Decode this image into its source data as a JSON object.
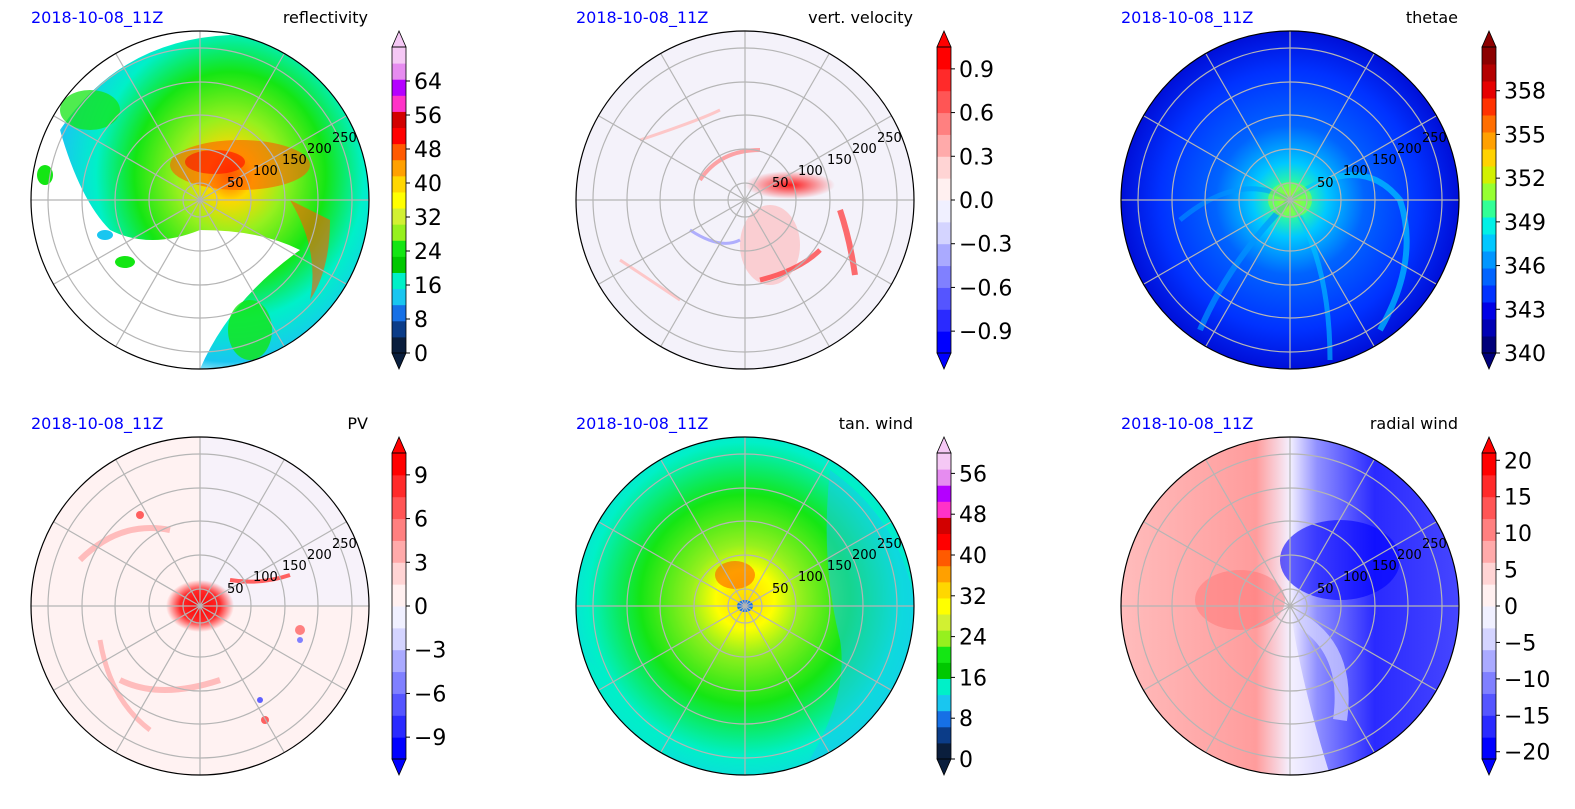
{
  "chart_data": [
    {
      "type": "heatmap",
      "datetime": "2018-10-08_11Z",
      "title": "reflectivity",
      "radial_ticks": [
        "50",
        "100",
        "150",
        "200",
        "250"
      ],
      "colorbar": {
        "ticks": [
          "0",
          "8",
          "16",
          "24",
          "32",
          "40",
          "48",
          "56",
          "64"
        ],
        "range": [
          0,
          72
        ],
        "extend": "both",
        "colors": [
          "#0a1e3d",
          "#0b3c88",
          "#1670e6",
          "#19c6f0",
          "#00f0c8",
          "#00c800",
          "#14e614",
          "#96f01e",
          "#d2f032",
          "#ffff00",
          "#ffd700",
          "#ffa000",
          "#ff5a00",
          "#ff0000",
          "#d20000",
          "#ff32c8",
          "#b400ff",
          "#e68cf0",
          "#f5c8f5"
        ]
      }
    },
    {
      "type": "heatmap",
      "datetime": "2018-10-08_11Z",
      "title": "vert. velocity",
      "radial_ticks": [
        "50",
        "100",
        "150",
        "200",
        "250"
      ],
      "colorbar": {
        "ticks": [
          "−0.9",
          "−0.6",
          "−0.3",
          "0.0",
          "0.3",
          "0.6",
          "0.9"
        ],
        "range": [
          -1.05,
          1.05
        ],
        "extend": "both",
        "colors": [
          "#0000ff",
          "#2a2aff",
          "#5555ff",
          "#8080ff",
          "#aaaaff",
          "#d4d4ff",
          "#f0f0ff",
          "#fff0f0",
          "#ffd4d4",
          "#ffaaaa",
          "#ff8080",
          "#ff5555",
          "#ff2a2a",
          "#ff0000"
        ]
      }
    },
    {
      "type": "heatmap",
      "datetime": "2018-10-08_11Z",
      "title": "thetae",
      "radial_ticks": [
        "50",
        "100",
        "150",
        "200",
        "250"
      ],
      "colorbar": {
        "ticks": [
          "340",
          "343",
          "346",
          "349",
          "352",
          "355",
          "358"
        ],
        "range": [
          340,
          361
        ],
        "extend": "both",
        "colors": [
          "#00007a",
          "#0000b4",
          "#0000e6",
          "#0032ff",
          "#0064ff",
          "#0096ff",
          "#00c8ff",
          "#00f0e6",
          "#32ff96",
          "#96ff32",
          "#d2f000",
          "#ffd200",
          "#ffa000",
          "#ff6e00",
          "#ff3200",
          "#e60000",
          "#b40000",
          "#8c0000"
        ]
      }
    },
    {
      "type": "heatmap",
      "datetime": "2018-10-08_11Z",
      "title": "PV",
      "radial_ticks": [
        "50",
        "100",
        "150",
        "200",
        "250"
      ],
      "colorbar": {
        "ticks": [
          "−9",
          "−6",
          "−3",
          "0",
          "3",
          "6",
          "9"
        ],
        "range": [
          -10.5,
          10.5
        ],
        "extend": "both",
        "colors": [
          "#0000ff",
          "#2a2aff",
          "#5555ff",
          "#8080ff",
          "#aaaaff",
          "#d4d4ff",
          "#f0f0ff",
          "#fff0f0",
          "#ffd4d4",
          "#ffaaaa",
          "#ff8080",
          "#ff5555",
          "#ff2a2a",
          "#ff0000"
        ]
      }
    },
    {
      "type": "heatmap",
      "datetime": "2018-10-08_11Z",
      "title": "tan. wind",
      "radial_ticks": [
        "50",
        "100",
        "150",
        "200",
        "250"
      ],
      "colorbar": {
        "ticks": [
          "0",
          "8",
          "16",
          "24",
          "32",
          "40",
          "48",
          "56"
        ],
        "range": [
          0,
          60
        ],
        "extend": "both",
        "colors": [
          "#0a1e3d",
          "#0b3c88",
          "#1670e6",
          "#19c6f0",
          "#00f0c8",
          "#00c800",
          "#14e614",
          "#96f01e",
          "#d2f032",
          "#ffff00",
          "#ffd700",
          "#ffa000",
          "#ff5a00",
          "#ff0000",
          "#d20000",
          "#ff32c8",
          "#b400ff",
          "#e68cf0",
          "#f5c8f5"
        ]
      }
    },
    {
      "type": "heatmap",
      "datetime": "2018-10-08_11Z",
      "title": "radial wind",
      "radial_ticks": [
        "50",
        "100",
        "150",
        "200",
        "250"
      ],
      "colorbar": {
        "ticks": [
          "−20",
          "−15",
          "−10",
          "−5",
          "0",
          "5",
          "10",
          "15",
          "20"
        ],
        "range": [
          -21,
          21
        ],
        "extend": "both",
        "colors": [
          "#0000ff",
          "#2a2aff",
          "#5555ff",
          "#8080ff",
          "#aaaaff",
          "#d4d4ff",
          "#f0f0ff",
          "#fff0f0",
          "#ffd4d4",
          "#ffaaaa",
          "#ff8080",
          "#ff5555",
          "#ff2a2a",
          "#ff0000"
        ]
      }
    }
  ]
}
